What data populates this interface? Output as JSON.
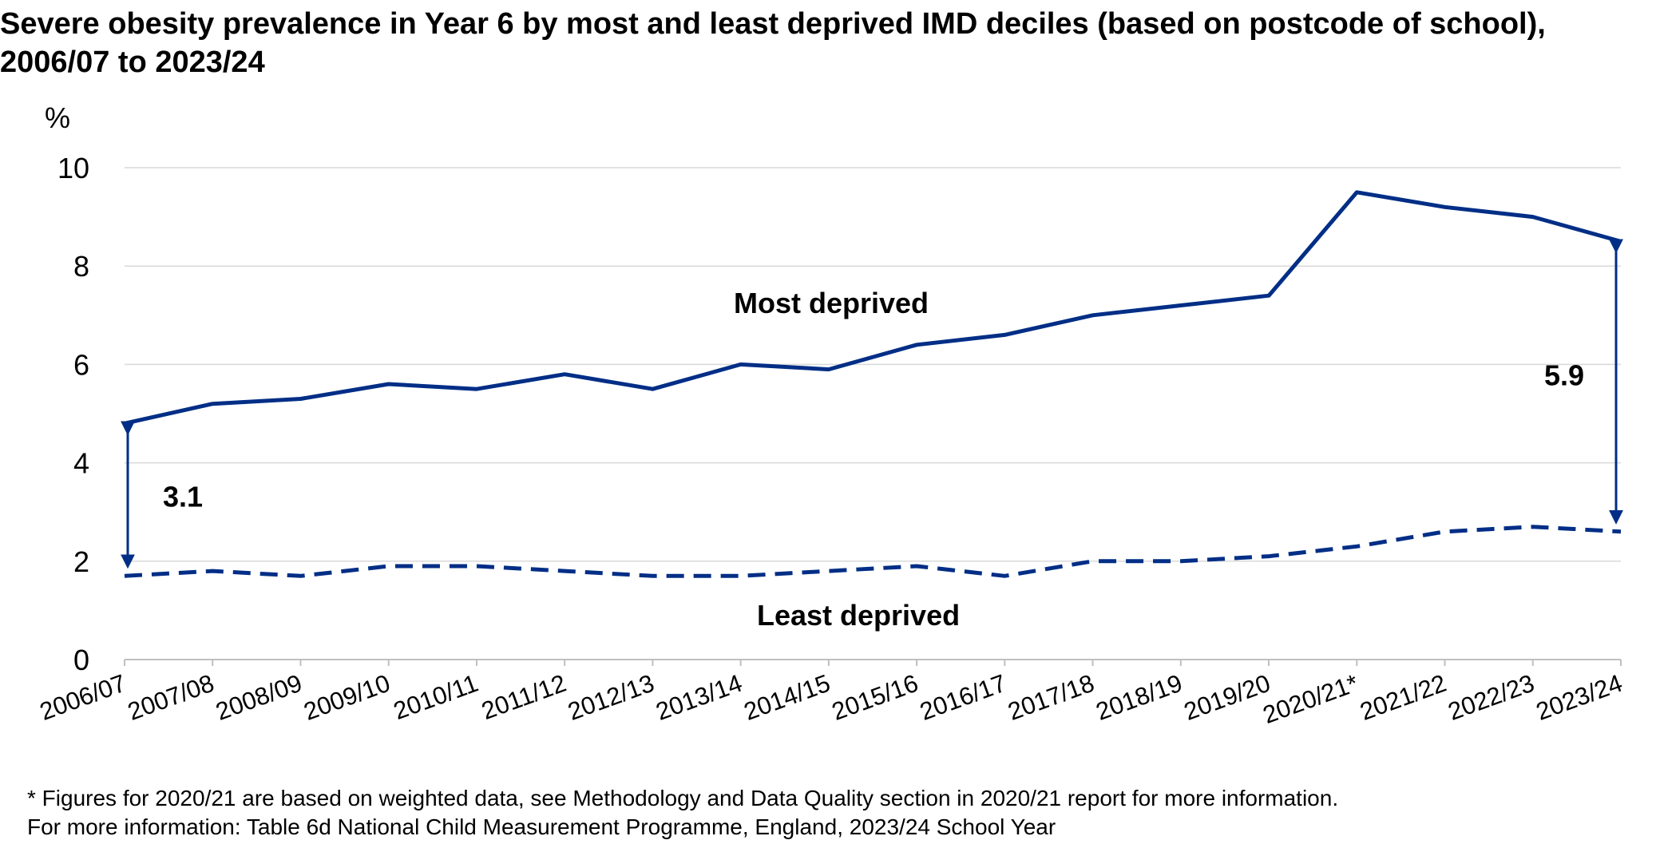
{
  "chart_data": {
    "type": "line",
    "title": "Severe obesity prevalence in Year 6 by most and least deprived IMD deciles (based on postcode of school), 2006/07 to 2023/24",
    "ylabel": "%",
    "ylim": [
      0,
      10
    ],
    "yticks": [
      "0",
      "2",
      "4",
      "6",
      "8",
      "10"
    ],
    "grid": true,
    "categories": [
      "2006/07",
      "2007/08",
      "2008/09",
      "2009/10",
      "2010/11",
      "2011/12",
      "2012/13",
      "2013/14",
      "2014/15",
      "2015/16",
      "2016/17",
      "2017/18",
      "2018/19",
      "2019/20",
      "2020/21*",
      "2021/22",
      "2022/23",
      "2023/24"
    ],
    "series": [
      {
        "name": "Most deprived",
        "style": "solid",
        "color": "#002e86",
        "values": [
          4.8,
          5.2,
          5.3,
          5.6,
          5.5,
          5.8,
          5.5,
          6.0,
          5.9,
          6.4,
          6.6,
          7.0,
          7.2,
          7.4,
          9.5,
          9.2,
          9.0,
          8.5
        ]
      },
      {
        "name": "Least deprived",
        "style": "dashed",
        "color": "#002e86",
        "values": [
          1.7,
          1.8,
          1.7,
          1.9,
          1.9,
          1.8,
          1.7,
          1.7,
          1.8,
          1.9,
          1.7,
          2.0,
          2.0,
          2.1,
          2.3,
          2.6,
          2.7,
          2.6
        ]
      }
    ],
    "annotations": [
      {
        "label": "3.1",
        "category": "2006/07",
        "from": 4.8,
        "to": 1.7
      },
      {
        "label": "5.9",
        "category": "2023/24",
        "from": 8.5,
        "to": 2.6
      }
    ]
  },
  "footnotes": [
    "* Figures for 2020/21 are based on weighted data, see Methodology and Data Quality section in 2020/21 report for more information.",
    "For more information: Table 6d National Child Measurement Programme, England, 2023/24 School Year"
  ]
}
